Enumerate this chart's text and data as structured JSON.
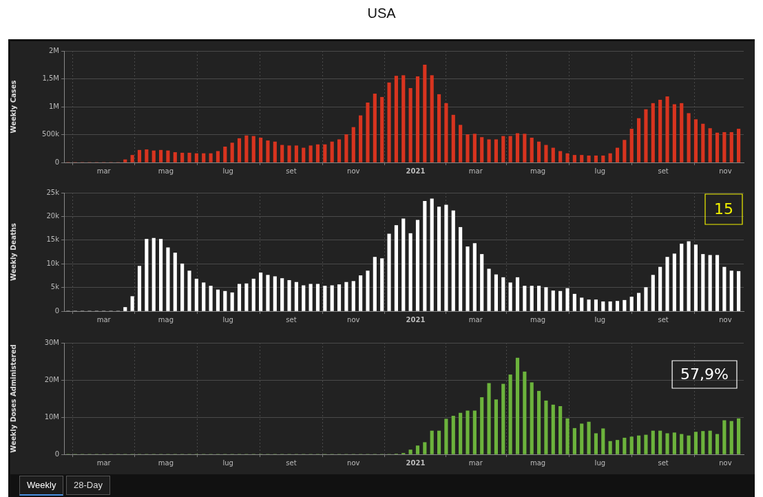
{
  "chart_data": [
    {
      "type": "bar",
      "title": "USA",
      "ylabel": "Weekly Cases",
      "color": "#d8341f",
      "grid": true,
      "xlim": [
        "2020-01-22",
        "2021-11-19"
      ],
      "xticks": [
        {
          "value": "2020-03-01",
          "label": "mar"
        },
        {
          "value": "2020-05-01",
          "label": "mag"
        },
        {
          "value": "2020-07-01",
          "label": "lug"
        },
        {
          "value": "2020-09-01",
          "label": "set"
        },
        {
          "value": "2020-11-01",
          "label": "nov"
        },
        {
          "value": "2021-01-01",
          "label": "2021"
        },
        {
          "value": "2021-03-01",
          "label": "mar"
        },
        {
          "value": "2021-05-01",
          "label": "mag"
        },
        {
          "value": "2021-07-01",
          "label": "lug"
        },
        {
          "value": "2021-09-01",
          "label": "set"
        },
        {
          "value": "2021-11-01",
          "label": "nov"
        }
      ],
      "ylim": [
        0,
        2000000
      ],
      "yticks": [
        {
          "value": 0,
          "label": "0"
        },
        {
          "value": 500000,
          "label": "500k"
        },
        {
          "value": 1000000,
          "label": "1M"
        },
        {
          "value": 1500000,
          "label": "1,5M"
        },
        {
          "value": 2000000,
          "label": "2M"
        }
      ],
      "x": [
        "2020-01-26",
        "2020-02-02",
        "2020-02-09",
        "2020-02-16",
        "2020-02-23",
        "2020-03-01",
        "2020-03-08",
        "2020-03-15",
        "2020-03-22",
        "2020-03-29",
        "2020-04-05",
        "2020-04-12",
        "2020-04-19",
        "2020-04-26",
        "2020-05-03",
        "2020-05-10",
        "2020-05-17",
        "2020-05-24",
        "2020-05-31",
        "2020-06-07",
        "2020-06-14",
        "2020-06-21",
        "2020-06-28",
        "2020-07-05",
        "2020-07-12",
        "2020-07-19",
        "2020-07-26",
        "2020-08-02",
        "2020-08-09",
        "2020-08-16",
        "2020-08-23",
        "2020-08-30",
        "2020-09-06",
        "2020-09-13",
        "2020-09-20",
        "2020-09-27",
        "2020-10-04",
        "2020-10-11",
        "2020-10-18",
        "2020-10-25",
        "2020-11-01",
        "2020-11-08",
        "2020-11-15",
        "2020-11-22",
        "2020-11-29",
        "2020-12-06",
        "2020-12-13",
        "2020-12-20",
        "2020-12-27",
        "2021-01-03",
        "2021-01-10",
        "2021-01-17",
        "2021-01-24",
        "2021-01-31",
        "2021-02-07",
        "2021-02-14",
        "2021-02-21",
        "2021-02-28",
        "2021-03-07",
        "2021-03-14",
        "2021-03-21",
        "2021-03-28",
        "2021-04-04",
        "2021-04-11",
        "2021-04-18",
        "2021-04-25",
        "2021-05-02",
        "2021-05-09",
        "2021-05-16",
        "2021-05-23",
        "2021-05-30",
        "2021-06-06",
        "2021-06-13",
        "2021-06-20",
        "2021-06-27",
        "2021-07-04",
        "2021-07-11",
        "2021-07-18",
        "2021-07-25",
        "2021-08-01",
        "2021-08-08",
        "2021-08-15",
        "2021-08-22",
        "2021-08-29",
        "2021-09-05",
        "2021-09-12",
        "2021-09-19",
        "2021-09-26",
        "2021-10-03",
        "2021-10-10",
        "2021-10-17",
        "2021-10-24",
        "2021-10-31",
        "2021-11-07",
        "2021-11-14"
      ],
      "values": [
        0,
        0,
        0,
        0,
        0,
        0,
        0,
        0,
        50000,
        130000,
        220000,
        230000,
        210000,
        220000,
        210000,
        180000,
        170000,
        170000,
        160000,
        160000,
        160000,
        200000,
        280000,
        350000,
        430000,
        480000,
        470000,
        440000,
        390000,
        370000,
        310000,
        300000,
        300000,
        260000,
        300000,
        320000,
        320000,
        370000,
        410000,
        500000,
        630000,
        840000,
        1070000,
        1230000,
        1170000,
        1430000,
        1550000,
        1560000,
        1330000,
        1540000,
        1750000,
        1560000,
        1220000,
        1060000,
        850000,
        670000,
        500000,
        510000,
        450000,
        410000,
        410000,
        470000,
        470000,
        520000,
        510000,
        440000,
        370000,
        310000,
        260000,
        200000,
        160000,
        130000,
        130000,
        120000,
        120000,
        120000,
        160000,
        260000,
        400000,
        600000,
        790000,
        950000,
        1060000,
        1120000,
        1180000,
        1040000,
        1060000,
        880000,
        770000,
        690000,
        610000,
        530000,
        540000,
        540000,
        600000
      ]
    },
    {
      "type": "bar",
      "ylabel": "Weekly Deaths",
      "color": "#ffffff",
      "grid": true,
      "annotations": [
        "15"
      ],
      "xlim": [
        "2020-01-22",
        "2021-11-19"
      ],
      "xticks": [
        {
          "value": "2020-03-01",
          "label": "mar"
        },
        {
          "value": "2020-05-01",
          "label": "mag"
        },
        {
          "value": "2020-07-01",
          "label": "lug"
        },
        {
          "value": "2020-09-01",
          "label": "set"
        },
        {
          "value": "2020-11-01",
          "label": "nov"
        },
        {
          "value": "2021-01-01",
          "label": "2021"
        },
        {
          "value": "2021-03-01",
          "label": "mar"
        },
        {
          "value": "2021-05-01",
          "label": "mag"
        },
        {
          "value": "2021-07-01",
          "label": "lug"
        },
        {
          "value": "2021-09-01",
          "label": "set"
        },
        {
          "value": "2021-11-01",
          "label": "nov"
        }
      ],
      "ylim": [
        0,
        25000
      ],
      "yticks": [
        {
          "value": 0,
          "label": "0"
        },
        {
          "value": 5000,
          "label": "5k"
        },
        {
          "value": 10000,
          "label": "10k"
        },
        {
          "value": 15000,
          "label": "15k"
        },
        {
          "value": 20000,
          "label": "20k"
        },
        {
          "value": 25000,
          "label": "25k"
        }
      ],
      "x": [
        "2020-01-26",
        "2020-02-02",
        "2020-02-09",
        "2020-02-16",
        "2020-02-23",
        "2020-03-01",
        "2020-03-08",
        "2020-03-15",
        "2020-03-22",
        "2020-03-29",
        "2020-04-05",
        "2020-04-12",
        "2020-04-19",
        "2020-04-26",
        "2020-05-03",
        "2020-05-10",
        "2020-05-17",
        "2020-05-24",
        "2020-05-31",
        "2020-06-07",
        "2020-06-14",
        "2020-06-21",
        "2020-06-28",
        "2020-07-05",
        "2020-07-12",
        "2020-07-19",
        "2020-07-26",
        "2020-08-02",
        "2020-08-09",
        "2020-08-16",
        "2020-08-23",
        "2020-08-30",
        "2020-09-06",
        "2020-09-13",
        "2020-09-20",
        "2020-09-27",
        "2020-10-04",
        "2020-10-11",
        "2020-10-18",
        "2020-10-25",
        "2020-11-01",
        "2020-11-08",
        "2020-11-15",
        "2020-11-22",
        "2020-11-29",
        "2020-12-06",
        "2020-12-13",
        "2020-12-20",
        "2020-12-27",
        "2021-01-03",
        "2021-01-10",
        "2021-01-17",
        "2021-01-24",
        "2021-01-31",
        "2021-02-07",
        "2021-02-14",
        "2021-02-21",
        "2021-02-28",
        "2021-03-07",
        "2021-03-14",
        "2021-03-21",
        "2021-03-28",
        "2021-04-04",
        "2021-04-11",
        "2021-04-18",
        "2021-04-25",
        "2021-05-02",
        "2021-05-09",
        "2021-05-16",
        "2021-05-23",
        "2021-05-30",
        "2021-06-06",
        "2021-06-13",
        "2021-06-20",
        "2021-06-27",
        "2021-07-04",
        "2021-07-11",
        "2021-07-18",
        "2021-07-25",
        "2021-08-01",
        "2021-08-08",
        "2021-08-15",
        "2021-08-22",
        "2021-08-29",
        "2021-09-05",
        "2021-09-12",
        "2021-09-19",
        "2021-09-26",
        "2021-10-03",
        "2021-10-10",
        "2021-10-17",
        "2021-10-24",
        "2021-10-31",
        "2021-11-07",
        "2021-11-14"
      ],
      "values": [
        0,
        0,
        0,
        0,
        0,
        0,
        0,
        0,
        800,
        3100,
        9500,
        15200,
        15400,
        15200,
        13400,
        12300,
        10000,
        8500,
        6800,
        6000,
        5300,
        4500,
        4200,
        3900,
        5700,
        5800,
        6800,
        8100,
        7600,
        7300,
        6900,
        6500,
        6100,
        5400,
        5700,
        5700,
        5300,
        5400,
        5600,
        6100,
        6300,
        7500,
        8500,
        11400,
        11100,
        16300,
        18100,
        19500,
        16400,
        19200,
        23200,
        23700,
        22000,
        22400,
        21200,
        17700,
        13600,
        14300,
        12000,
        8900,
        7700,
        7100,
        6000,
        7100,
        5300,
        5300,
        5300,
        5000,
        4300,
        4200,
        4800,
        3600,
        2800,
        2400,
        2400,
        2000,
        2000,
        2100,
        2300,
        3000,
        3800,
        5000,
        7600,
        9300,
        11400,
        12100,
        14200,
        14700,
        14000,
        12000,
        11800,
        11800,
        9300,
        8500,
        8400
      ]
    },
    {
      "type": "bar",
      "ylabel": "Weekly Doses Administered",
      "color": "#6cb33c",
      "grid": true,
      "annotations": [
        "57,9%"
      ],
      "xlim": [
        "2020-01-22",
        "2021-11-19"
      ],
      "xticks": [
        {
          "value": "2020-03-01",
          "label": "mar"
        },
        {
          "value": "2020-05-01",
          "label": "mag"
        },
        {
          "value": "2020-07-01",
          "label": "lug"
        },
        {
          "value": "2020-09-01",
          "label": "set"
        },
        {
          "value": "2020-11-01",
          "label": "nov"
        },
        {
          "value": "2021-01-01",
          "label": "2021"
        },
        {
          "value": "2021-03-01",
          "label": "mar"
        },
        {
          "value": "2021-05-01",
          "label": "mag"
        },
        {
          "value": "2021-07-01",
          "label": "lug"
        },
        {
          "value": "2021-09-01",
          "label": "set"
        },
        {
          "value": "2021-11-01",
          "label": "nov"
        }
      ],
      "ylim": [
        0,
        30000000
      ],
      "yticks": [
        {
          "value": 0,
          "label": "0"
        },
        {
          "value": 10000000,
          "label": "10M"
        },
        {
          "value": 20000000,
          "label": "20M"
        },
        {
          "value": 30000000,
          "label": "30M"
        }
      ],
      "x": [
        "2020-01-26",
        "2020-02-02",
        "2020-02-09",
        "2020-02-16",
        "2020-02-23",
        "2020-03-01",
        "2020-03-08",
        "2020-03-15",
        "2020-03-22",
        "2020-03-29",
        "2020-04-05",
        "2020-04-12",
        "2020-04-19",
        "2020-04-26",
        "2020-05-03",
        "2020-05-10",
        "2020-05-17",
        "2020-05-24",
        "2020-05-31",
        "2020-06-07",
        "2020-06-14",
        "2020-06-21",
        "2020-06-28",
        "2020-07-05",
        "2020-07-12",
        "2020-07-19",
        "2020-07-26",
        "2020-08-02",
        "2020-08-09",
        "2020-08-16",
        "2020-08-23",
        "2020-08-30",
        "2020-09-06",
        "2020-09-13",
        "2020-09-20",
        "2020-09-27",
        "2020-10-04",
        "2020-10-11",
        "2020-10-18",
        "2020-10-25",
        "2020-11-01",
        "2020-11-08",
        "2020-11-15",
        "2020-11-22",
        "2020-11-29",
        "2020-12-06",
        "2020-12-13",
        "2020-12-20",
        "2020-12-27",
        "2021-01-03",
        "2021-01-10",
        "2021-01-17",
        "2021-01-24",
        "2021-01-31",
        "2021-02-07",
        "2021-02-14",
        "2021-02-21",
        "2021-02-28",
        "2021-03-07",
        "2021-03-14",
        "2021-03-21",
        "2021-03-28",
        "2021-04-04",
        "2021-04-11",
        "2021-04-18",
        "2021-04-25",
        "2021-05-02",
        "2021-05-09",
        "2021-05-16",
        "2021-05-23",
        "2021-05-30",
        "2021-06-06",
        "2021-06-13",
        "2021-06-20",
        "2021-06-27",
        "2021-07-04",
        "2021-07-11",
        "2021-07-18",
        "2021-07-25",
        "2021-08-01",
        "2021-08-08",
        "2021-08-15",
        "2021-08-22",
        "2021-08-29",
        "2021-09-05",
        "2021-09-12",
        "2021-09-19",
        "2021-09-26",
        "2021-10-03",
        "2021-10-10",
        "2021-10-17",
        "2021-10-24",
        "2021-10-31",
        "2021-11-07",
        "2021-11-14"
      ],
      "values": [
        0,
        0,
        0,
        0,
        0,
        0,
        0,
        0,
        0,
        0,
        0,
        0,
        0,
        0,
        0,
        0,
        0,
        0,
        0,
        0,
        0,
        0,
        0,
        0,
        0,
        0,
        0,
        0,
        0,
        0,
        0,
        0,
        0,
        0,
        0,
        0,
        0,
        0,
        0,
        0,
        0,
        0,
        0,
        0,
        0,
        0,
        100000,
        300000,
        1200000,
        2300000,
        3200000,
        6300000,
        6300000,
        9500000,
        10300000,
        11100000,
        11700000,
        11700000,
        15300000,
        19100000,
        14700000,
        18900000,
        21400000,
        25900000,
        22200000,
        19300000,
        17000000,
        14400000,
        13300000,
        12900000,
        9600000,
        7000000,
        8200000,
        8700000,
        5600000,
        6900000,
        3500000,
        3800000,
        4400000,
        4700000,
        5000000,
        5200000,
        6300000,
        6300000,
        5600000,
        5800000,
        5400000,
        5000000,
        6000000,
        6200000,
        6300000,
        5400000,
        9100000,
        8900000,
        9600000
      ]
    },
    {
      "type": "other",
      "annotations": [
        "Weekly",
        "28-Day"
      ]
    }
  ]
}
